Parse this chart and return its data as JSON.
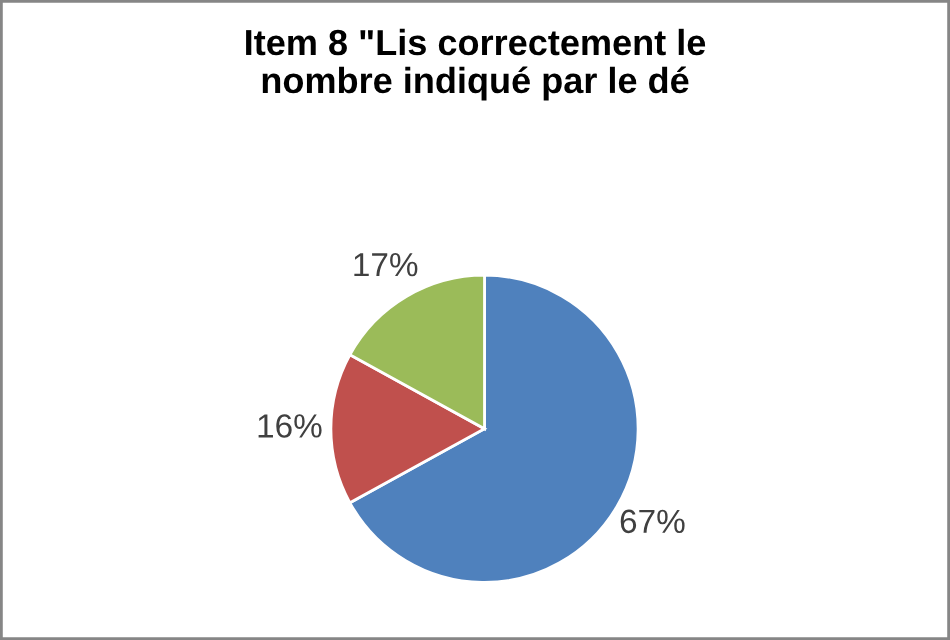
{
  "chart_data": {
    "type": "pie",
    "title": "Item 8 \"Lis correctement le\nnombre indiqué par le dé",
    "categories": [
      null,
      null,
      null
    ],
    "values": [
      67,
      16,
      17
    ],
    "value_labels": [
      "67%",
      "16%",
      "17%"
    ],
    "colors": [
      "#4f81bd",
      "#c0504d",
      "#9bbb59"
    ]
  }
}
